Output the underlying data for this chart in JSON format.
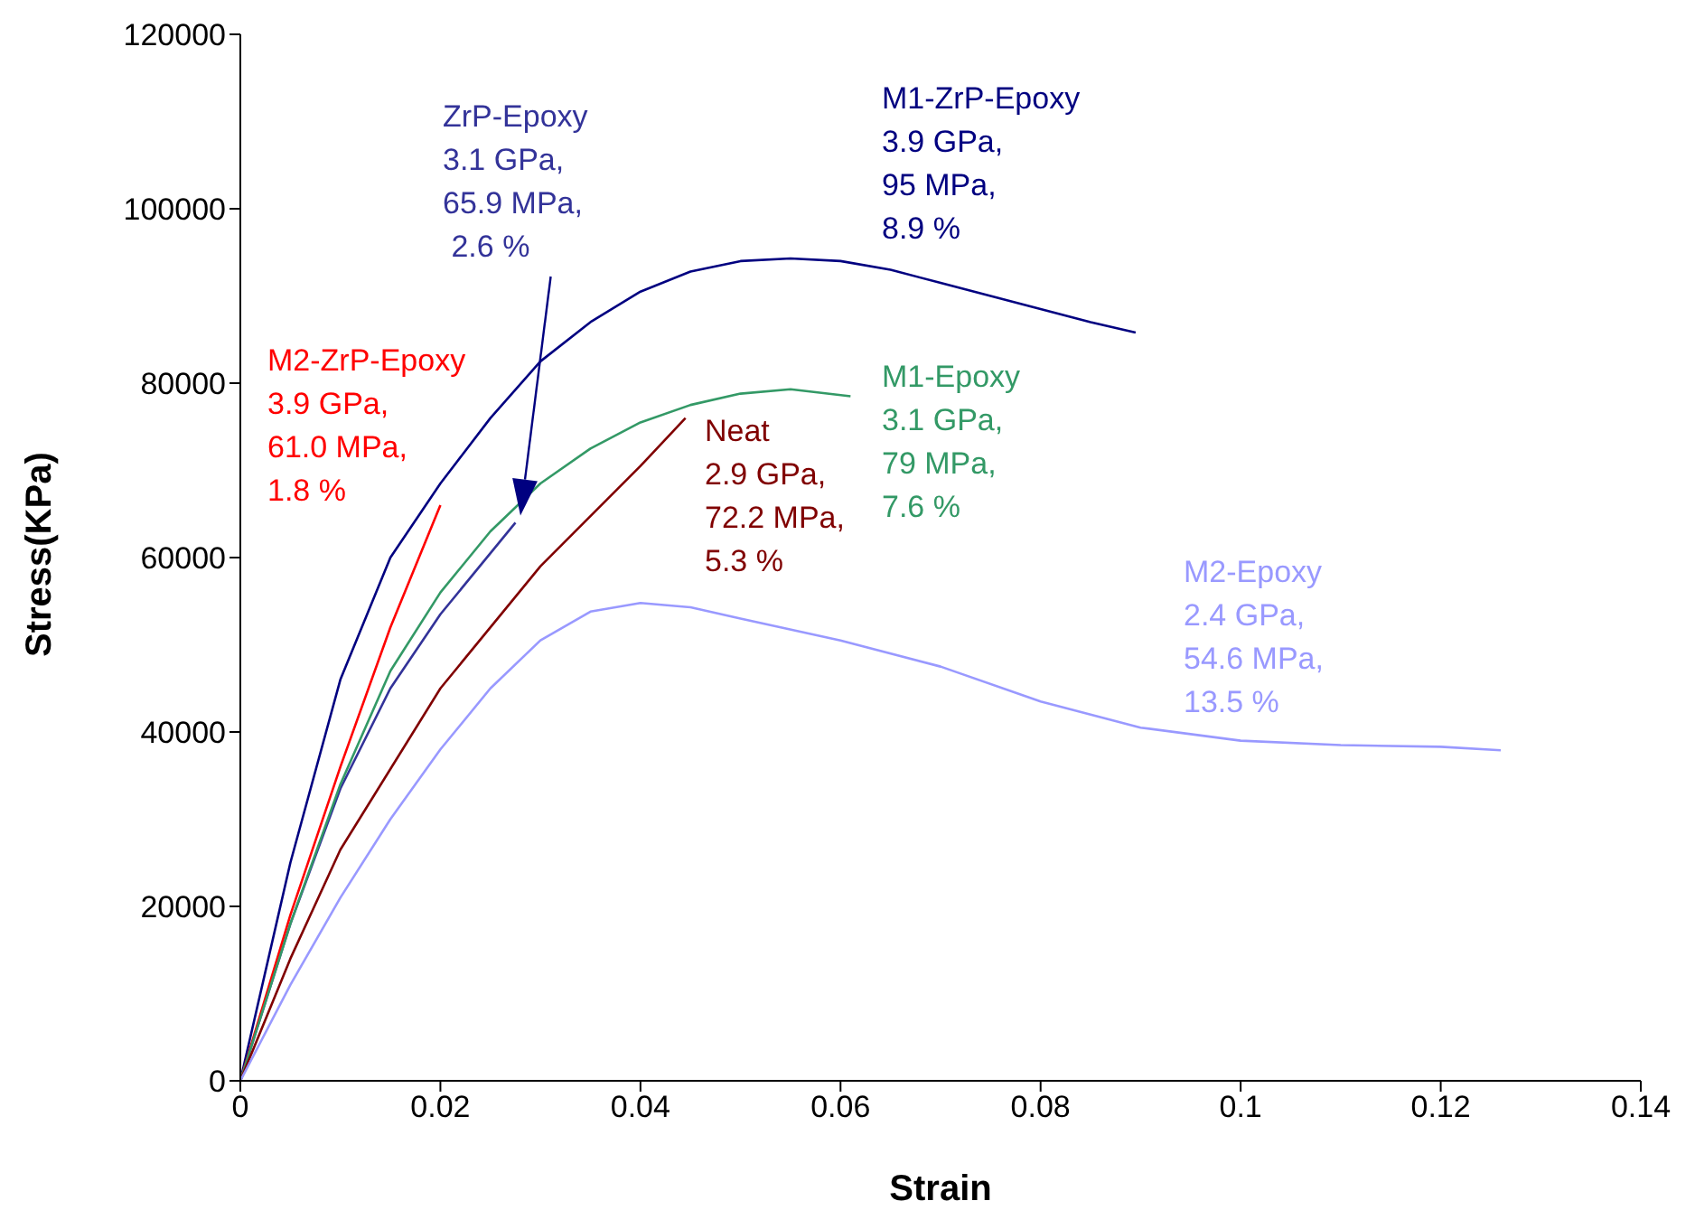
{
  "chart_data": {
    "type": "line",
    "xlabel": "Strain",
    "ylabel": "Stress(KPa)",
    "xlim": [
      0,
      0.14
    ],
    "xticks": [
      0,
      0.02,
      0.04,
      0.06,
      0.08,
      0.1,
      0.12,
      0.14
    ],
    "ylim": [
      0,
      120000
    ],
    "yticks": [
      0,
      20000,
      40000,
      60000,
      80000,
      100000,
      120000
    ],
    "grid": false,
    "legend": false,
    "marker": "none",
    "line_style": "solid",
    "series": [
      {
        "name": "M1-ZrP-Epoxy",
        "color": "#000080",
        "x": [
          0,
          0.005,
          0.01,
          0.015,
          0.02,
          0.025,
          0.03,
          0.035,
          0.04,
          0.045,
          0.05,
          0.055,
          0.06,
          0.065,
          0.07,
          0.075,
          0.08,
          0.085,
          0.0895
        ],
        "values": [
          0,
          25000,
          46000,
          60000,
          68500,
          76000,
          82500,
          87000,
          90500,
          92800,
          94000,
          94300,
          94000,
          93000,
          91500,
          90000,
          88500,
          87000,
          85800
        ]
      },
      {
        "name": "ZrP-Epoxy",
        "color": "#333399",
        "x": [
          0,
          0.005,
          0.01,
          0.015,
          0.02,
          0.0275
        ],
        "values": [
          0,
          18000,
          33500,
          45000,
          53500,
          64000
        ]
      },
      {
        "name": "M2-ZrP-Epoxy",
        "color": "#ff0000",
        "x": [
          0,
          0.005,
          0.01,
          0.015,
          0.02
        ],
        "values": [
          0,
          19000,
          36000,
          52000,
          66000
        ]
      },
      {
        "name": "M1-Epoxy",
        "color": "#339966",
        "x": [
          0,
          0.005,
          0.01,
          0.015,
          0.02,
          0.025,
          0.03,
          0.035,
          0.04,
          0.045,
          0.05,
          0.055,
          0.061
        ],
        "values": [
          0,
          18000,
          34000,
          47000,
          56000,
          63000,
          68500,
          72500,
          75500,
          77500,
          78800,
          79300,
          78500
        ]
      },
      {
        "name": "Neat",
        "color": "#800000",
        "x": [
          0,
          0.005,
          0.01,
          0.02,
          0.03,
          0.04,
          0.0445
        ],
        "values": [
          0,
          14000,
          26500,
          45000,
          59000,
          70500,
          76000
        ]
      },
      {
        "name": "M2-Epoxy",
        "color": "#9999ff",
        "x": [
          0,
          0.005,
          0.01,
          0.015,
          0.02,
          0.025,
          0.03,
          0.035,
          0.04,
          0.045,
          0.05,
          0.06,
          0.07,
          0.08,
          0.09,
          0.1,
          0.11,
          0.12,
          0.126
        ],
        "values": [
          0,
          11000,
          21000,
          30000,
          38000,
          45000,
          50500,
          53800,
          54800,
          54300,
          53000,
          50500,
          47500,
          43500,
          40500,
          39000,
          38500,
          38300,
          37900
        ]
      }
    ],
    "annotations": [
      "3.9 GPa,\n95 MPa,\n8.9 %",
      "3.1 GPa,\n65.9 MPa,\n 2.6 %",
      "3.9 GPa,\n61.0 MPa,\n1.8 %",
      "3.1 GPa,\n79 MPa,\n7.6 %",
      "2.9 GPa,\n72.2 MPa,\n5.3 %",
      "2.4 GPa,\n54.6 MPa,\n13.5 %"
    ]
  }
}
